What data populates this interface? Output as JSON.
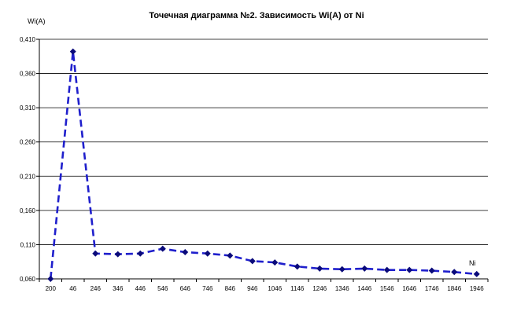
{
  "chart_data": {
    "type": "line",
    "title": "Точечная диаграмма №2. Зависимость Wi(A) от Ni",
    "ylabel": "Wi(A)",
    "xlabel": "Ni",
    "ylim": [
      0.06,
      0.41
    ],
    "y_ticks": [
      "0,060",
      "0,110",
      "0,160",
      "0,210",
      "0,260",
      "0,310",
      "0,360",
      "0,410"
    ],
    "grid": true,
    "categories": [
      "200",
      "46",
      "246",
      "346",
      "446",
      "546",
      "646",
      "746",
      "846",
      "946",
      "1046",
      "1146",
      "1246",
      "1346",
      "1446",
      "1546",
      "1646",
      "1746",
      "1846",
      "1946"
    ],
    "series": [
      {
        "color": "#1f1fcc",
        "values": [
          0.06,
          0.392,
          0.097,
          0.096,
          0.097,
          0.104,
          0.099,
          0.097,
          0.094,
          0.086,
          0.084,
          0.078,
          0.075,
          0.074,
          0.075,
          0.073,
          0.073,
          0.072,
          0.07,
          0.067
        ]
      }
    ]
  }
}
